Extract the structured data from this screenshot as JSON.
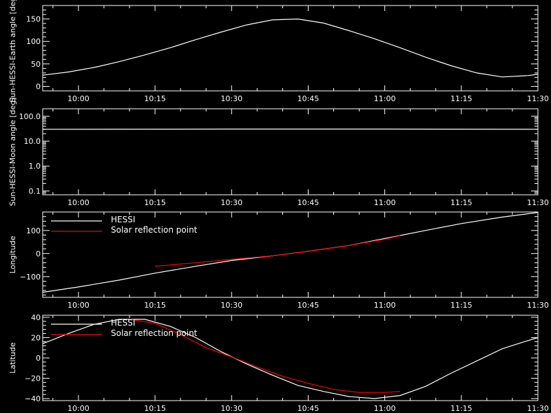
{
  "colors": {
    "background": "#000000",
    "hessi": "#ffffff",
    "reflection": "#ff0000",
    "axis": "#ffffff"
  },
  "chart_data": [
    {
      "type": "line",
      "ylabel": "Sun-HESSI-Earth angle [deg]",
      "xlim": [
        "09:53",
        "11:30"
      ],
      "xticks": [
        "10:00",
        "10:15",
        "10:30",
        "10:45",
        "11:00",
        "11:15",
        "11:30"
      ],
      "ylim": [
        -10,
        180
      ],
      "yticks": [
        0,
        50,
        100,
        150
      ],
      "ytick_labels": [
        "0",
        "50",
        "100",
        "150"
      ],
      "series": [
        {
          "x": [
            "09:53",
            "09:58",
            "10:03",
            "10:08",
            "10:13",
            "10:18",
            "10:23",
            "10:28",
            "10:33",
            "10:38",
            "10:43",
            "10:48",
            "10:53",
            "10:58",
            "11:03",
            "11:08",
            "11:13",
            "11:18",
            "11:23",
            "11:28",
            "11:30"
          ],
          "y": [
            25,
            32,
            42,
            55,
            70,
            86,
            104,
            121,
            137,
            148,
            150,
            141,
            124,
            106,
            86,
            65,
            46,
            30,
            21,
            24,
            27
          ]
        }
      ]
    },
    {
      "type": "line",
      "ylabel": "Sun-HESSI-Moon angle [deg]",
      "yscale": "log",
      "xlim": [
        "09:53",
        "11:30"
      ],
      "xticks": [
        "10:00",
        "10:15",
        "10:30",
        "10:45",
        "11:00",
        "11:15",
        "11:30"
      ],
      "ylim": [
        0.07,
        200
      ],
      "yticks": [
        0.1,
        1,
        10,
        100
      ],
      "ytick_labels": [
        "0.1",
        "1.0",
        "10.0",
        "100.0"
      ],
      "series": [
        {
          "x": [
            "09:53",
            "10:30",
            "11:00",
            "11:30"
          ],
          "y": [
            30,
            30.5,
            30.5,
            30
          ]
        }
      ]
    },
    {
      "type": "line",
      "ylabel": "Longitude",
      "xlim": [
        "09:53",
        "11:30"
      ],
      "xticks": [
        "10:00",
        "10:15",
        "10:30",
        "10:45",
        "11:00",
        "11:15",
        "11:30"
      ],
      "ylim": [
        -190,
        180
      ],
      "yticks": [
        -100,
        0,
        100
      ],
      "ytick_labels": [
        "−100",
        "0",
        "100"
      ],
      "legend": {
        "position": "top-left",
        "entries": [
          "HESSI",
          "Solar reflection point"
        ]
      },
      "series": [
        {
          "name": "HESSI",
          "x": [
            "09:53",
            "10:00",
            "10:08",
            "10:15",
            "10:23",
            "10:30",
            "10:38",
            "10:45",
            "10:53",
            "11:00",
            "11:08",
            "11:15",
            "11:23",
            "11:30"
          ],
          "y": [
            -168,
            -145,
            -115,
            -85,
            -55,
            -30,
            -10,
            10,
            35,
            65,
            100,
            130,
            158,
            178
          ]
        },
        {
          "name": "Solar reflection point",
          "x": [
            "10:15",
            "10:23",
            "10:30",
            "10:38",
            "10:45",
            "10:53",
            "11:00",
            "11:03"
          ],
          "y": [
            -55,
            -40,
            -25,
            -10,
            10,
            35,
            62,
            77
          ]
        }
      ]
    },
    {
      "type": "line",
      "ylabel": "Latitude",
      "xlim": [
        "09:53",
        "11:30"
      ],
      "xticks": [
        "10:00",
        "10:15",
        "10:30",
        "10:45",
        "11:00",
        "11:15",
        "11:30"
      ],
      "ylim": [
        -42,
        42
      ],
      "yticks": [
        -40,
        -20,
        0,
        20,
        40
      ],
      "ytick_labels": [
        "−40",
        "−20",
        "0",
        "20",
        "40"
      ],
      "legend": {
        "position": "top-left",
        "entries": [
          "HESSI",
          "Solar reflection point"
        ]
      },
      "series": [
        {
          "name": "HESSI",
          "x": [
            "09:53",
            "09:58",
            "10:03",
            "10:08",
            "10:13",
            "10:18",
            "10:23",
            "10:28",
            "10:33",
            "10:38",
            "10:43",
            "10:48",
            "10:53",
            "10:58",
            "11:03",
            "11:08",
            "11:13",
            "11:18",
            "11:23",
            "11:28",
            "11:30"
          ],
          "y": [
            14,
            24,
            33,
            38,
            38,
            31,
            20,
            6,
            -6,
            -17,
            -27,
            -33,
            -38,
            -40,
            -37,
            -28,
            -15,
            -3,
            9,
            17,
            20
          ]
        },
        {
          "name": "Solar reflection point",
          "x": [
            "10:10",
            "10:15",
            "10:20",
            "10:25",
            "10:30",
            "10:35",
            "10:40",
            "10:45",
            "10:50",
            "10:55",
            "11:00",
            "11:03"
          ],
          "y": [
            38,
            34,
            23,
            10,
            1,
            -9,
            -18,
            -25,
            -31,
            -34,
            -34,
            -33
          ]
        }
      ]
    }
  ]
}
